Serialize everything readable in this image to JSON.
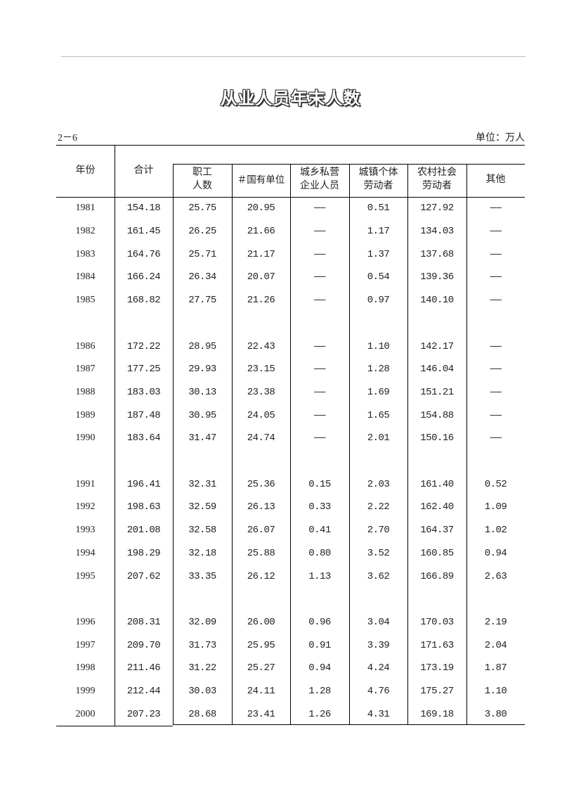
{
  "title": "从业人员年末人数",
  "table_number": "2－6",
  "unit": "单位：万人",
  "columns": [
    {
      "key": "year",
      "label": "年份"
    },
    {
      "key": "total",
      "label": "合计"
    },
    {
      "key": "staff",
      "label_lines": [
        "职工",
        "人数"
      ]
    },
    {
      "key": "state",
      "label": "＃国有单位"
    },
    {
      "key": "private",
      "label_lines": [
        "城乡私营",
        "企业人员"
      ]
    },
    {
      "key": "individual",
      "label_lines": [
        "城镇个体",
        "劳动者"
      ]
    },
    {
      "key": "rural",
      "label_lines": [
        "农村社会",
        "劳动者"
      ]
    },
    {
      "key": "other",
      "label": "其他"
    }
  ],
  "rows": [
    [
      "1981",
      "154.18",
      "25.75",
      "20.95",
      "——",
      "0.51",
      "127.92",
      "——"
    ],
    [
      "1982",
      "161.45",
      "26.25",
      "21.66",
      "——",
      "1.17",
      "134.03",
      "——"
    ],
    [
      "1983",
      "164.76",
      "25.71",
      "21.17",
      "——",
      "1.37",
      "137.68",
      "——"
    ],
    [
      "1984",
      "166.24",
      "26.34",
      "20.07",
      "——",
      "0.54",
      "139.36",
      "——"
    ],
    [
      "1985",
      "168.82",
      "27.75",
      "21.26",
      "——",
      "0.97",
      "140.10",
      "——"
    ],
    [
      "1986",
      "172.22",
      "28.95",
      "22.43",
      "——",
      "1.10",
      "142.17",
      "——"
    ],
    [
      "1987",
      "177.25",
      "29.93",
      "23.15",
      "——",
      "1.28",
      "146.04",
      "——"
    ],
    [
      "1988",
      "183.03",
      "30.13",
      "23.38",
      "——",
      "1.69",
      "151.21",
      "——"
    ],
    [
      "1989",
      "187.48",
      "30.95",
      "24.05",
      "——",
      "1.65",
      "154.88",
      "——"
    ],
    [
      "1990",
      "183.64",
      "31.47",
      "24.74",
      "——",
      "2.01",
      "150.16",
      "——"
    ],
    [
      "1991",
      "196.41",
      "32.31",
      "25.36",
      "0.15",
      "2.03",
      "161.40",
      "0.52"
    ],
    [
      "1992",
      "198.63",
      "32.59",
      "26.13",
      "0.33",
      "2.22",
      "162.40",
      "1.09"
    ],
    [
      "1993",
      "201.08",
      "32.58",
      "26.07",
      "0.41",
      "2.70",
      "164.37",
      "1.02"
    ],
    [
      "1994",
      "198.29",
      "32.18",
      "25.88",
      "0.80",
      "3.52",
      "160.85",
      "0.94"
    ],
    [
      "1995",
      "207.62",
      "33.35",
      "26.12",
      "1.13",
      "3.62",
      "166.89",
      "2.63"
    ],
    [
      "1996",
      "208.31",
      "32.09",
      "26.00",
      "0.96",
      "3.04",
      "170.03",
      "2.19"
    ],
    [
      "1997",
      "209.70",
      "31.73",
      "25.95",
      "0.91",
      "3.39",
      "171.63",
      "2.04"
    ],
    [
      "1998",
      "211.46",
      "31.22",
      "25.27",
      "0.94",
      "4.24",
      "173.19",
      "1.87"
    ],
    [
      "1999",
      "212.44",
      "30.03",
      "24.11",
      "1.28",
      "4.76",
      "175.27",
      "1.10"
    ],
    [
      "2000",
      "207.23",
      "28.68",
      "23.41",
      "1.26",
      "4.31",
      "169.18",
      "3.80"
    ]
  ]
}
